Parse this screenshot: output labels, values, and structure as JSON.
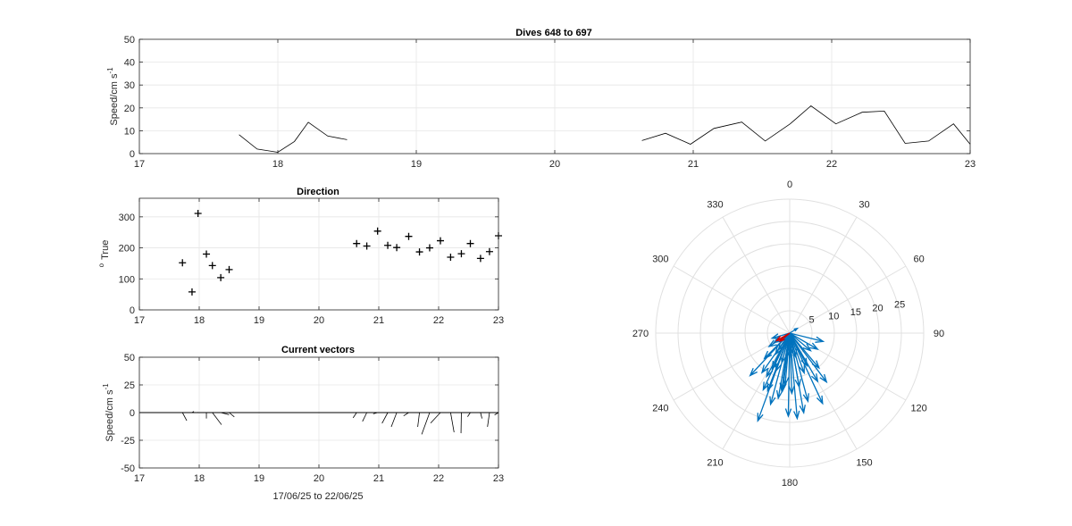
{
  "chart_data": [
    {
      "type": "line",
      "title": "Dives 648 to 697",
      "xlabel": "",
      "ylabel": "Speed/cm s",
      "ylabel_superscript": "-1",
      "xlim": [
        17,
        23
      ],
      "ylim": [
        0,
        50
      ],
      "xticks": [
        "17",
        "18",
        "19",
        "20",
        "21",
        "22",
        "23"
      ],
      "yticks": [
        "0",
        "10",
        "20",
        "30",
        "40",
        "50"
      ],
      "grid": true,
      "segments": [
        [
          [
            17.72,
            8.3
          ],
          [
            17.85,
            2.0
          ],
          [
            18.0,
            0.6
          ],
          [
            18.12,
            5.3
          ],
          [
            18.22,
            13.7
          ],
          [
            18.36,
            7.7
          ],
          [
            18.5,
            6.1
          ]
        ],
        [
          [
            20.63,
            5.7
          ],
          [
            20.8,
            8.9
          ],
          [
            20.98,
            4.1
          ],
          [
            21.15,
            11.0
          ],
          [
            21.35,
            13.8
          ],
          [
            21.52,
            5.5
          ],
          [
            21.7,
            13.0
          ],
          [
            21.85,
            20.9
          ],
          [
            22.03,
            13.0
          ],
          [
            22.22,
            18.1
          ],
          [
            22.38,
            18.6
          ],
          [
            22.53,
            4.5
          ],
          [
            22.7,
            5.5
          ],
          [
            22.88,
            13.0
          ],
          [
            23.0,
            4.1
          ]
        ]
      ]
    },
    {
      "type": "scatter",
      "title": "Direction",
      "xlabel": "",
      "ylabel": "True",
      "ylabel_superscript": "o",
      "xlim": [
        17,
        23
      ],
      "ylim": [
        0,
        360
      ],
      "xticks": [
        "17",
        "18",
        "19",
        "20",
        "21",
        "22",
        "23"
      ],
      "yticks": [
        "0",
        "100",
        "200",
        "300"
      ],
      "grid": true,
      "points": [
        [
          17.72,
          152
        ],
        [
          17.88,
          58
        ],
        [
          17.98,
          311
        ],
        [
          18.12,
          180
        ],
        [
          18.22,
          143
        ],
        [
          18.36,
          104
        ],
        [
          18.5,
          130
        ],
        [
          20.63,
          214
        ],
        [
          20.8,
          206
        ],
        [
          20.98,
          254
        ],
        [
          21.15,
          208
        ],
        [
          21.3,
          201
        ],
        [
          21.5,
          237
        ],
        [
          21.68,
          187
        ],
        [
          21.85,
          200
        ],
        [
          22.03,
          223
        ],
        [
          22.2,
          170
        ],
        [
          22.38,
          181
        ],
        [
          22.53,
          214
        ],
        [
          22.7,
          166
        ],
        [
          22.85,
          188
        ],
        [
          23.0,
          239
        ]
      ]
    },
    {
      "type": "line",
      "title": "Current vectors",
      "xlabel": "17/06/25 to 22/06/25",
      "ylabel": "Speed/cm s",
      "ylabel_superscript": "-1",
      "xlim": [
        17,
        23
      ],
      "ylim": [
        -50,
        50
      ],
      "xticks": [
        "17",
        "18",
        "19",
        "20",
        "21",
        "22",
        "23"
      ],
      "yticks": [
        "-50",
        "-25",
        "0",
        "25",
        "50"
      ],
      "grid": true,
      "vectors": [
        [
          17.72,
          8.3,
          152
        ],
        [
          17.88,
          2.0,
          58
        ],
        [
          17.98,
          0.6,
          311
        ],
        [
          18.12,
          5.3,
          180
        ],
        [
          18.22,
          13.7,
          143
        ],
        [
          18.36,
          7.7,
          104
        ],
        [
          18.5,
          6.1,
          130
        ],
        [
          20.63,
          5.7,
          214
        ],
        [
          20.8,
          8.9,
          206
        ],
        [
          20.98,
          4.1,
          254
        ],
        [
          21.15,
          11.0,
          208
        ],
        [
          21.3,
          13.8,
          201
        ],
        [
          21.5,
          5.5,
          237
        ],
        [
          21.68,
          13.0,
          187
        ],
        [
          21.85,
          20.9,
          200
        ],
        [
          22.03,
          13.0,
          223
        ],
        [
          22.2,
          18.1,
          170
        ],
        [
          22.38,
          18.6,
          181
        ],
        [
          22.53,
          4.5,
          214
        ],
        [
          22.7,
          5.5,
          166
        ],
        [
          22.85,
          13.0,
          188
        ],
        [
          23.0,
          4.1,
          239
        ]
      ]
    },
    {
      "type": "polar-compass",
      "title": "",
      "rlim": [
        0,
        30
      ],
      "rticks": [
        "5",
        "10",
        "15",
        "20",
        "25"
      ],
      "theta_ticks": [
        "0",
        "30",
        "60",
        "90",
        "120",
        "150",
        "180",
        "210",
        "240",
        "270",
        "300",
        "330"
      ],
      "series": [
        {
          "color": "#0072bd",
          "vectors": [
            [
              8.3,
              152
            ],
            [
              2.0,
              58
            ],
            [
              5.3,
              180
            ],
            [
              13.7,
              143
            ],
            [
              7.7,
              104
            ],
            [
              6.1,
              130
            ],
            [
              5.7,
              214
            ],
            [
              8.9,
              206
            ],
            [
              4.1,
              254
            ],
            [
              11.0,
              208
            ],
            [
              13.8,
              201
            ],
            [
              5.5,
              237
            ],
            [
              13.0,
              187
            ],
            [
              20.9,
              200
            ],
            [
              13.0,
              223
            ],
            [
              18.1,
              170
            ],
            [
              18.6,
              181
            ],
            [
              4.5,
              214
            ],
            [
              5.5,
              166
            ],
            [
              13.0,
              188
            ],
            [
              4.1,
              239
            ],
            [
              12.5,
              150
            ],
            [
              15.8,
              165
            ],
            [
              16.5,
              195
            ],
            [
              19.2,
              175
            ],
            [
              14.0,
              205
            ],
            [
              9.5,
              160
            ],
            [
              10.8,
              215
            ],
            [
              7.2,
              120
            ],
            [
              11.6,
              185
            ],
            [
              17.4,
              155
            ],
            [
              6.8,
              195
            ],
            [
              12.2,
              170
            ],
            [
              8.0,
              225
            ],
            [
              14.8,
              190
            ],
            [
              10.2,
              140
            ],
            [
              9.0,
              200
            ],
            [
              13.5,
              178
            ]
          ]
        },
        {
          "color": "#d00000",
          "vectors": [
            [
              3.4,
              240
            ],
            [
              2.8,
              230
            ]
          ]
        }
      ]
    }
  ]
}
